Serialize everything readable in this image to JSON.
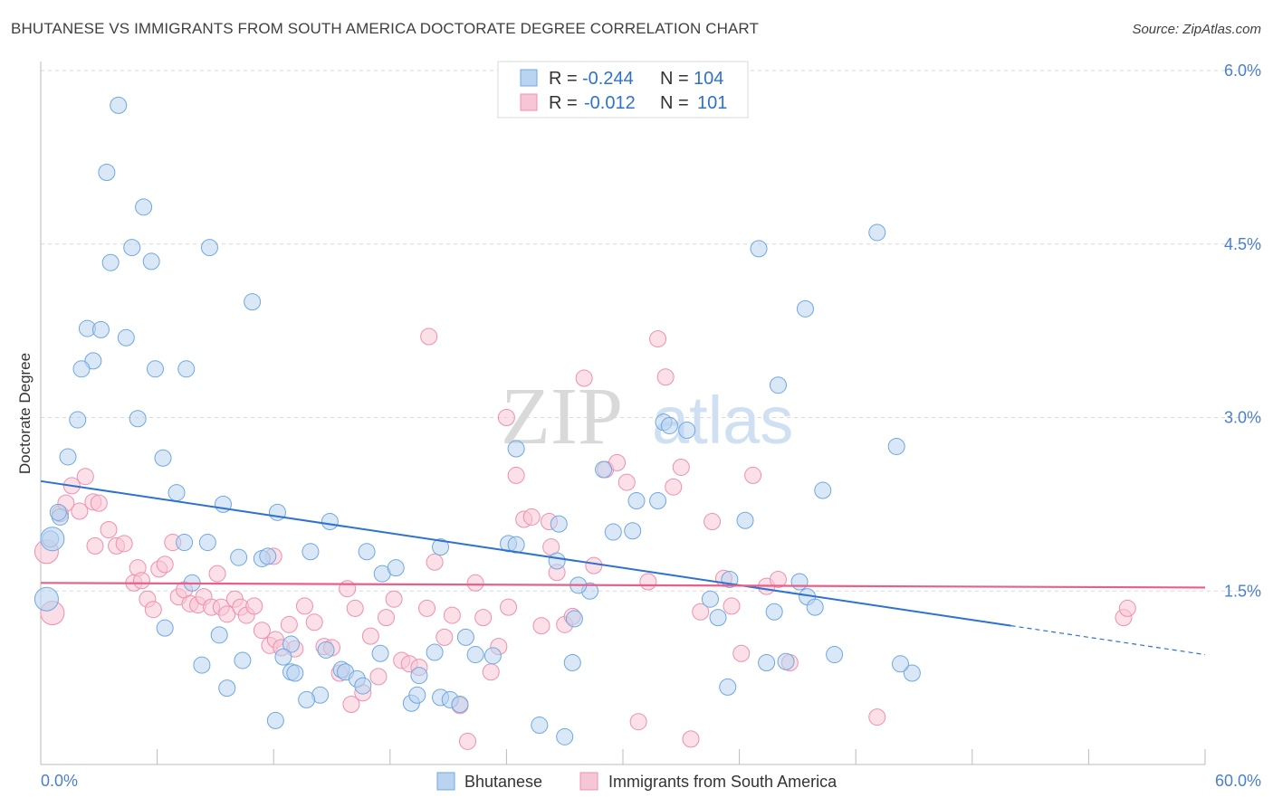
{
  "title": "BHUTANESE VS IMMIGRANTS FROM SOUTH AMERICA DOCTORATE DEGREE CORRELATION CHART",
  "source": "Source: ZipAtlas.com",
  "watermark": {
    "zip": "ZIP",
    "atlas": "atlas"
  },
  "colors": {
    "blue": "#6fa8e0",
    "blue_fill": "#b9d3f0",
    "blue_line": "#2e72cf",
    "pink": "#f08fb0",
    "pink_fill": "#f7c6d6",
    "pink_line": "#e85f8a",
    "tick_text": "#4a7fd0",
    "grid": "#d8d8d8"
  },
  "legend_top": [
    {
      "r_label": "R =",
      "r_value": "-0.244",
      "n_label": "N =",
      "n_value": "104"
    },
    {
      "r_label": "R =",
      "r_value": "-0.012",
      "n_label": "N =",
      "n_value": "101"
    }
  ],
  "legend_bottom": [
    "Bhutanese",
    "Immigrants from South America"
  ],
  "chart_data": {
    "type": "scatter",
    "ylabel": "Doctorate Degree",
    "xlabel": "",
    "xlim": [
      0,
      60
    ],
    "ylim": [
      0,
      6.0
    ],
    "x_tick_labels": [
      "0.0%",
      "60.0%"
    ],
    "y_ticks": [
      1.5,
      3.0,
      4.5,
      6.0
    ],
    "y_tick_labels": [
      "1.5%",
      "3.0%",
      "4.5%",
      "6.0%"
    ],
    "grid": "horizontal dashed",
    "series": [
      {
        "name": "Bhutanese",
        "trend": {
          "x0": 0,
          "y0": 2.45,
          "x1": 50,
          "y1": 1.2,
          "dash_to_x": 60,
          "dash_to_y": 0.95
        },
        "points": [
          [
            4.0,
            5.7
          ],
          [
            3.4,
            5.12
          ],
          [
            5.3,
            4.82
          ],
          [
            4.7,
            4.47
          ],
          [
            8.7,
            4.47
          ],
          [
            3.6,
            4.34
          ],
          [
            5.7,
            4.35
          ],
          [
            10.9,
            4.0
          ],
          [
            2.4,
            3.77
          ],
          [
            3.1,
            3.76
          ],
          [
            4.4,
            3.69
          ],
          [
            2.7,
            3.49
          ],
          [
            2.1,
            3.42
          ],
          [
            5.9,
            3.42
          ],
          [
            7.5,
            3.42
          ],
          [
            1.9,
            2.98
          ],
          [
            5.0,
            2.99
          ],
          [
            1.4,
            2.66
          ],
          [
            6.3,
            2.65
          ],
          [
            7.0,
            2.35
          ],
          [
            9.4,
            2.25
          ],
          [
            12.2,
            2.18
          ],
          [
            14.9,
            2.1
          ],
          [
            1.0,
            2.14
          ],
          [
            0.9,
            2.18
          ],
          [
            0.5,
            1.95
          ],
          [
            7.4,
            1.92
          ],
          [
            8.6,
            1.92
          ],
          [
            10.2,
            1.79
          ],
          [
            11.4,
            1.78
          ],
          [
            11.7,
            1.8
          ],
          [
            13.9,
            1.84
          ],
          [
            16.8,
            1.84
          ],
          [
            17.6,
            1.65
          ],
          [
            18.3,
            1.7
          ],
          [
            20.6,
            1.88
          ],
          [
            24.1,
            1.91
          ],
          [
            26.6,
            1.76
          ],
          [
            28.3,
            1.5
          ],
          [
            27.7,
            1.55
          ],
          [
            7.8,
            1.57
          ],
          [
            6.4,
            1.18
          ],
          [
            9.2,
            1.12
          ],
          [
            10.4,
            0.9
          ],
          [
            8.3,
            0.86
          ],
          [
            9.6,
            0.66
          ],
          [
            12.9,
            1.04
          ],
          [
            12.5,
            0.93
          ],
          [
            12.9,
            0.8
          ],
          [
            13.1,
            0.79
          ],
          [
            14.4,
            0.6
          ],
          [
            13.7,
            0.56
          ],
          [
            14.7,
            0.99
          ],
          [
            15.5,
            0.82
          ],
          [
            15.7,
            0.8
          ],
          [
            16.3,
            0.74
          ],
          [
            16.6,
            0.68
          ],
          [
            17.5,
            0.96
          ],
          [
            19.5,
            0.77
          ],
          [
            19.1,
            0.53
          ],
          [
            19.4,
            0.6
          ],
          [
            20.6,
            0.58
          ],
          [
            21.1,
            0.56
          ],
          [
            21.6,
            0.52
          ],
          [
            20.3,
            0.97
          ],
          [
            21.9,
            1.1
          ],
          [
            22.4,
            0.95
          ],
          [
            23.3,
            0.94
          ],
          [
            12.1,
            0.38
          ],
          [
            24.5,
            1.9
          ],
          [
            24.5,
            2.73
          ],
          [
            25.7,
            0.34
          ],
          [
            27.0,
            0.24
          ],
          [
            27.4,
            0.88
          ],
          [
            27.5,
            1.26
          ],
          [
            26.7,
            2.08
          ],
          [
            29.0,
            2.55
          ],
          [
            29.5,
            2.01
          ],
          [
            30.5,
            2.02
          ],
          [
            30.7,
            2.28
          ],
          [
            31.8,
            2.28
          ],
          [
            32.1,
            2.96
          ],
          [
            32.4,
            2.93
          ],
          [
            33.3,
            2.89
          ],
          [
            34.5,
            1.43
          ],
          [
            34.9,
            1.27
          ],
          [
            35.5,
            1.6
          ],
          [
            35.4,
            0.67
          ],
          [
            36.3,
            2.11
          ],
          [
            37.0,
            4.46
          ],
          [
            38.0,
            3.28
          ],
          [
            37.4,
            0.88
          ],
          [
            37.8,
            1.32
          ],
          [
            38.4,
            0.89
          ],
          [
            39.1,
            1.58
          ],
          [
            39.5,
            1.45
          ],
          [
            39.4,
            3.94
          ],
          [
            39.9,
            1.36
          ],
          [
            40.3,
            2.37
          ],
          [
            40.9,
            0.95
          ],
          [
            43.1,
            4.6
          ],
          [
            44.1,
            2.75
          ],
          [
            44.9,
            0.79
          ],
          [
            44.3,
            0.87
          ]
        ],
        "large_points": [
          [
            0.3,
            1.43
          ],
          [
            0.6,
            1.95
          ]
        ]
      },
      {
        "name": "Immigrants from South America",
        "trend": {
          "x0": 0,
          "y0": 1.57,
          "x1": 60,
          "y1": 1.53
        },
        "points": [
          [
            1.0,
            2.17
          ],
          [
            1.3,
            2.26
          ],
          [
            1.6,
            2.41
          ],
          [
            2.0,
            2.19
          ],
          [
            2.3,
            2.49
          ],
          [
            2.7,
            2.27
          ],
          [
            2.8,
            1.89
          ],
          [
            3.5,
            2.03
          ],
          [
            3.9,
            1.89
          ],
          [
            4.3,
            1.91
          ],
          [
            4.8,
            1.57
          ],
          [
            5.0,
            1.7
          ],
          [
            5.2,
            1.59
          ],
          [
            5.5,
            1.43
          ],
          [
            5.8,
            1.34
          ],
          [
            6.1,
            1.69
          ],
          [
            6.4,
            1.73
          ],
          [
            6.8,
            1.92
          ],
          [
            7.1,
            1.45
          ],
          [
            7.4,
            1.51
          ],
          [
            7.7,
            1.39
          ],
          [
            8.1,
            1.38
          ],
          [
            8.4,
            1.45
          ],
          [
            8.8,
            1.36
          ],
          [
            9.1,
            1.65
          ],
          [
            9.3,
            1.36
          ],
          [
            9.6,
            1.3
          ],
          [
            10.0,
            1.43
          ],
          [
            10.3,
            1.36
          ],
          [
            10.6,
            1.29
          ],
          [
            11.0,
            1.37
          ],
          [
            11.4,
            1.16
          ],
          [
            11.8,
            1.03
          ],
          [
            12.1,
            1.08
          ],
          [
            12.4,
            1.01
          ],
          [
            12.8,
            1.21
          ],
          [
            13.1,
            1.0
          ],
          [
            13.6,
            1.37
          ],
          [
            14.1,
            1.23
          ],
          [
            14.6,
            1.02
          ],
          [
            15.0,
            1.01
          ],
          [
            15.4,
            0.79
          ],
          [
            15.8,
            1.52
          ],
          [
            16.2,
            1.35
          ],
          [
            16.6,
            0.62
          ],
          [
            17.0,
            1.11
          ],
          [
            17.4,
            0.76
          ],
          [
            17.8,
            1.27
          ],
          [
            18.2,
            1.43
          ],
          [
            18.6,
            0.9
          ],
          [
            19.0,
            0.87
          ],
          [
            19.5,
            0.84
          ],
          [
            19.9,
            1.35
          ],
          [
            20.3,
            1.75
          ],
          [
            20.8,
            1.1
          ],
          [
            21.2,
            1.29
          ],
          [
            21.6,
            0.51
          ],
          [
            22.0,
            0.2
          ],
          [
            22.4,
            1.57
          ],
          [
            22.8,
            1.27
          ],
          [
            23.2,
            0.8
          ],
          [
            23.6,
            1.02
          ],
          [
            24.1,
            1.36
          ],
          [
            24.5,
            2.5
          ],
          [
            24.9,
            2.12
          ],
          [
            25.3,
            2.14
          ],
          [
            25.8,
            1.2
          ],
          [
            26.2,
            2.1
          ],
          [
            26.6,
            1.66
          ],
          [
            27.0,
            1.21
          ],
          [
            27.4,
            1.28
          ],
          [
            28.0,
            3.34
          ],
          [
            28.5,
            1.72
          ],
          [
            29.1,
            2.55
          ],
          [
            29.7,
            2.61
          ],
          [
            30.2,
            2.44
          ],
          [
            30.8,
            0.37
          ],
          [
            31.3,
            1.58
          ],
          [
            31.8,
            3.68
          ],
          [
            32.2,
            3.35
          ],
          [
            32.6,
            2.4
          ],
          [
            33.0,
            2.57
          ],
          [
            33.5,
            0.22
          ],
          [
            34.0,
            1.32
          ],
          [
            34.6,
            2.1
          ],
          [
            35.2,
            1.61
          ],
          [
            35.6,
            1.37
          ],
          [
            36.1,
            0.96
          ],
          [
            36.7,
            2.5
          ],
          [
            37.4,
            1.54
          ],
          [
            38.0,
            1.6
          ],
          [
            38.6,
            0.88
          ],
          [
            43.1,
            0.41
          ],
          [
            55.8,
            1.27
          ],
          [
            56.0,
            1.35
          ],
          [
            3.0,
            2.26
          ],
          [
            12.0,
            1.8
          ],
          [
            16.0,
            0.52
          ],
          [
            20.0,
            3.7
          ],
          [
            24.0,
            3.0
          ],
          [
            26.3,
            1.88
          ]
        ],
        "large_points": [
          [
            0.3,
            1.84
          ],
          [
            0.6,
            1.31
          ]
        ]
      }
    ]
  }
}
